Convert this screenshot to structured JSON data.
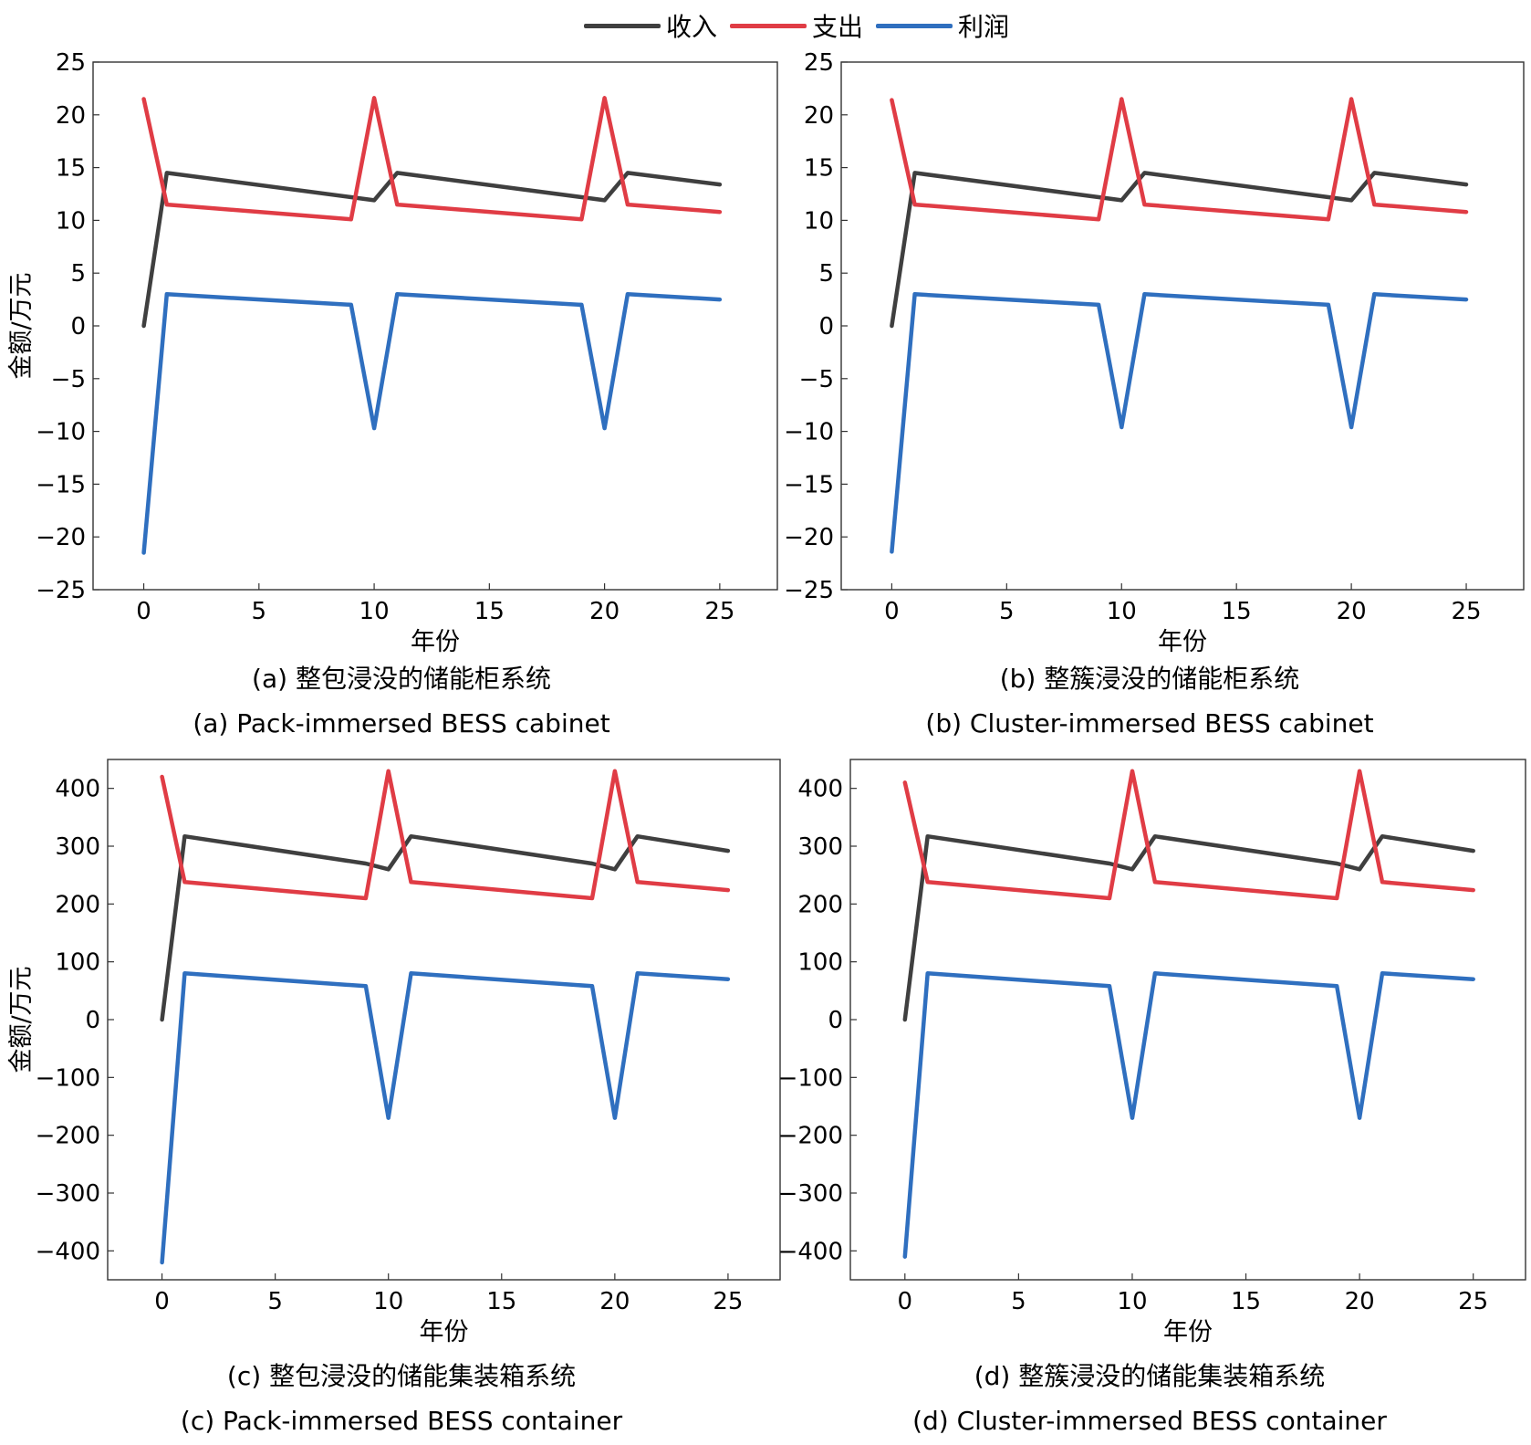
{
  "legend": [
    {
      "label": "收入",
      "color": "#3f3f3f"
    },
    {
      "label": "支出",
      "color": "#e03c45"
    },
    {
      "label": "利润",
      "color": "#2f6fbf"
    }
  ],
  "captions": {
    "a_cn": "(a) 整包浸没的储能柜系统",
    "a_en": "(a) Pack-immersed BESS cabinet",
    "b_cn": "(b) 整簇浸没的储能柜系统",
    "b_en": "(b) Cluster-immersed BESS cabinet",
    "c_cn": "(c) 整包浸没的储能集装箱系统",
    "c_en": "(c) Pack-immersed BESS container",
    "d_cn": "(d) 整簇浸没的储能集装箱系统",
    "d_en": "(d) Cluster-immersed BESS container"
  },
  "chart_data": [
    {
      "type": "line",
      "xlabel": "年份",
      "ylabel": "金额/万元",
      "xlim": [
        -2.2,
        27.5
      ],
      "ylim": [
        -25,
        25
      ],
      "xticks": [
        0,
        5,
        10,
        15,
        20,
        25
      ],
      "yticks": [
        25,
        20,
        15,
        10,
        5,
        0,
        -5,
        -10,
        -15,
        -20,
        -25
      ],
      "ytick_labels": [
        "25",
        "20",
        "15",
        "10",
        "5",
        "0",
        "−5",
        "−10",
        "−15",
        "−20",
        "−25"
      ],
      "series": [
        {
          "name": "收入",
          "color": "#3f3f3f",
          "x": [
            0,
            1,
            9,
            10,
            11,
            19,
            20,
            21,
            25
          ],
          "y": [
            0,
            14.5,
            12.2,
            11.9,
            14.5,
            12.2,
            11.9,
            14.5,
            13.4
          ]
        },
        {
          "name": "支出",
          "color": "#e03c45",
          "x": [
            0,
            1,
            9,
            10,
            11,
            19,
            20,
            21,
            25
          ],
          "y": [
            21.5,
            11.5,
            10.1,
            21.6,
            11.5,
            10.1,
            21.6,
            11.5,
            10.8
          ]
        },
        {
          "name": "利润",
          "color": "#2f6fbf",
          "x": [
            0,
            1,
            9,
            10,
            11,
            19,
            20,
            21,
            25
          ],
          "y": [
            -21.5,
            3.0,
            2.0,
            -9.7,
            3.0,
            2.0,
            -9.7,
            3.0,
            2.5
          ]
        }
      ]
    },
    {
      "type": "line",
      "xlabel": "年份",
      "ylabel": "",
      "xlim": [
        -2.2,
        27.5
      ],
      "ylim": [
        -25,
        25
      ],
      "xticks": [
        0,
        5,
        10,
        15,
        20,
        25
      ],
      "yticks": [
        25,
        20,
        15,
        10,
        5,
        0,
        -5,
        -10,
        -15,
        -20,
        -25
      ],
      "ytick_labels": [
        "25",
        "20",
        "15",
        "10",
        "5",
        "0",
        "−5",
        "−10",
        "−15",
        "−20",
        "−25"
      ],
      "series": [
        {
          "name": "收入",
          "color": "#3f3f3f",
          "x": [
            0,
            1,
            9,
            10,
            11,
            19,
            20,
            21,
            25
          ],
          "y": [
            0,
            14.5,
            12.2,
            11.9,
            14.5,
            12.2,
            11.9,
            14.5,
            13.4
          ]
        },
        {
          "name": "支出",
          "color": "#e03c45",
          "x": [
            0,
            1,
            9,
            10,
            11,
            19,
            20,
            21,
            25
          ],
          "y": [
            21.4,
            11.5,
            10.1,
            21.5,
            11.5,
            10.1,
            21.5,
            11.5,
            10.8
          ]
        },
        {
          "name": "利润",
          "color": "#2f6fbf",
          "x": [
            0,
            1,
            9,
            10,
            11,
            19,
            20,
            21,
            25
          ],
          "y": [
            -21.4,
            3.0,
            2.0,
            -9.6,
            3.0,
            2.0,
            -9.6,
            3.0,
            2.5
          ]
        }
      ]
    },
    {
      "type": "line",
      "xlabel": "年份",
      "ylabel": "金额/万元",
      "xlim": [
        -2.4,
        27.3
      ],
      "ylim": [
        -450,
        450
      ],
      "xticks": [
        0,
        5,
        10,
        15,
        20,
        25
      ],
      "yticks": [
        400,
        300,
        200,
        100,
        0,
        -100,
        -200,
        -300,
        -400
      ],
      "ytick_labels": [
        "400",
        "300",
        "200",
        "100",
        "0",
        "−100",
        "−200",
        "−300",
        "−400"
      ],
      "series": [
        {
          "name": "收入",
          "color": "#3f3f3f",
          "x": [
            0,
            1,
            9,
            10,
            11,
            19,
            20,
            21,
            25
          ],
          "y": [
            0,
            317,
            270,
            260,
            317,
            270,
            260,
            317,
            292
          ]
        },
        {
          "name": "支出",
          "color": "#e03c45",
          "x": [
            0,
            1,
            9,
            10,
            11,
            19,
            20,
            21,
            25
          ],
          "y": [
            420,
            238,
            210,
            430,
            238,
            210,
            430,
            238,
            224
          ]
        },
        {
          "name": "利润",
          "color": "#2f6fbf",
          "x": [
            0,
            1,
            9,
            10,
            11,
            19,
            20,
            21,
            25
          ],
          "y": [
            -420,
            80,
            58,
            -170,
            80,
            58,
            -170,
            80,
            70
          ]
        }
      ]
    },
    {
      "type": "line",
      "xlabel": "年份",
      "ylabel": "",
      "xlim": [
        -2.4,
        27.3
      ],
      "ylim": [
        -450,
        450
      ],
      "xticks": [
        0,
        5,
        10,
        15,
        20,
        25
      ],
      "yticks": [
        400,
        300,
        200,
        100,
        0,
        -100,
        -200,
        -300,
        -400
      ],
      "ytick_labels": [
        "400",
        "300",
        "200",
        "100",
        "0",
        "−100",
        "−200",
        "−300",
        "−400"
      ],
      "series": [
        {
          "name": "收入",
          "color": "#3f3f3f",
          "x": [
            0,
            1,
            9,
            10,
            11,
            19,
            20,
            21,
            25
          ],
          "y": [
            0,
            317,
            270,
            260,
            317,
            270,
            260,
            317,
            292
          ]
        },
        {
          "name": "支出",
          "color": "#e03c45",
          "x": [
            0,
            1,
            9,
            10,
            11,
            19,
            20,
            21,
            25
          ],
          "y": [
            410,
            238,
            210,
            430,
            238,
            210,
            430,
            238,
            224
          ]
        },
        {
          "name": "利润",
          "color": "#2f6fbf",
          "x": [
            0,
            1,
            9,
            10,
            11,
            19,
            20,
            21,
            25
          ],
          "y": [
            -410,
            80,
            58,
            -170,
            80,
            58,
            -170,
            80,
            70
          ]
        }
      ]
    }
  ]
}
